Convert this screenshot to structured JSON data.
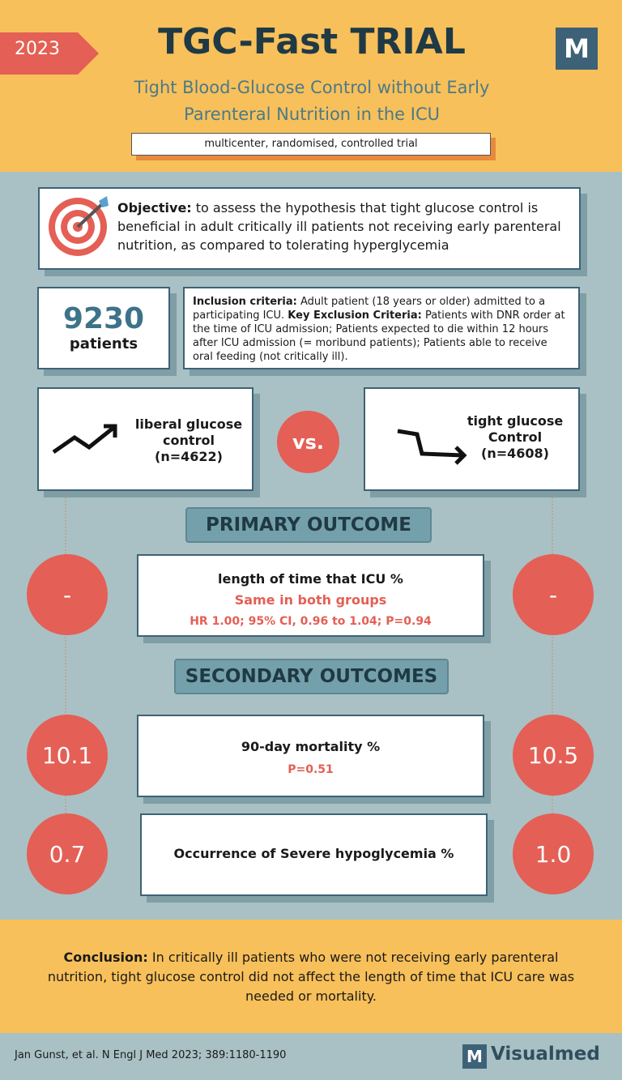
{
  "header": {
    "year": "2023",
    "title": "TGC-Fast TRIAL",
    "logo": "M",
    "subtitle": "Tight Blood-Glucose Control without Early Parenteral Nutrition in the ICU",
    "design": "multicenter, randomised, controlled trial"
  },
  "objective": {
    "label": "Objective:",
    "text": "to assess the hypothesis that tight glucose control is beneficial in adult critically ill patients not receiving early parenteral nutrition, as compared to tolerating hyperglycemia"
  },
  "patients": {
    "count": "9230",
    "unit": "patients"
  },
  "criteria": {
    "inclusion_label": "Inclusion criteria:",
    "inclusion_text": "Adult patient (18 years or older) admitted to a participating ICU.",
    "exclusion_label": "Key Exclusion Criteria:",
    "exclusion_text": "Patients with DNR order at the time of ICU admission; Patients expected to die within 12 hours after ICU admission (= moribund patients); Patients able to receive oral feeding (not critically ill)."
  },
  "arms": [
    {
      "label": "liberal glucose control",
      "n": "(n=4622)"
    },
    {
      "label": "tight glucose Control",
      "n": "(n=4608)"
    }
  ],
  "vs": "vs.",
  "primary": {
    "heading": "PRIMARY OUTCOME",
    "outcomes": [
      {
        "name": "length of time that ICU %",
        "result": "Same in both groups",
        "stats": "HR 1.00; 95% CI, 0.96 to 1.04; P=0.94",
        "liberal": "-",
        "tight": "-"
      }
    ]
  },
  "secondary": {
    "heading": "SECONDARY OUTCOMES",
    "outcomes": [
      {
        "name": "90-day mortality %",
        "stats": "P=0.51",
        "liberal": "10.1",
        "tight": "10.5"
      },
      {
        "name": "Occurrence of Severe hypoglycemia %",
        "liberal": "0.7",
        "tight": "1.0"
      }
    ]
  },
  "conclusion": {
    "label": "Conclusion:",
    "text": "In critically ill patients who were not receiving early parenteral nutrition, tight glucose control did not affect the length of time that ICU care was needed or mortality."
  },
  "footer": {
    "citation": "Jan Gunst, et al.  N Engl J Med 2023; 389:1180-1190",
    "logo": "M",
    "brand": "Visualmed"
  }
}
